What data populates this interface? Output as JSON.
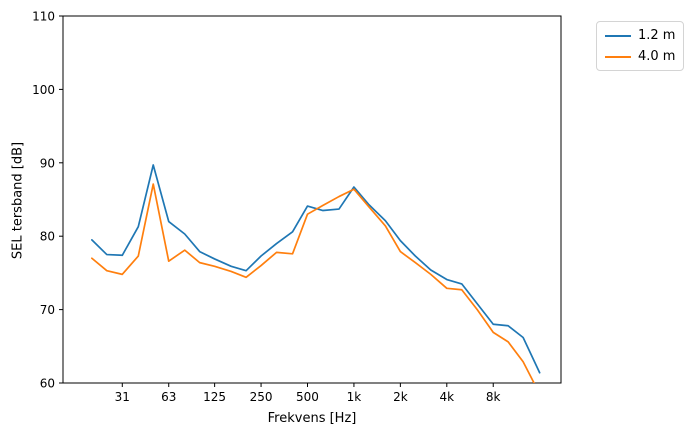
{
  "chart_data": {
    "type": "line",
    "title": "",
    "xlabel": "Frekvens [Hz]",
    "ylabel": "SEL tersband [dB]",
    "x_scale": "log",
    "grid": false,
    "xlim": [
      13,
      22000
    ],
    "ylim": [
      60,
      110
    ],
    "yticks": [
      60,
      70,
      80,
      90,
      100,
      110
    ],
    "xticks": [
      {
        "value": 31.5,
        "label": "31"
      },
      {
        "value": 63,
        "label": "63"
      },
      {
        "value": 125,
        "label": "125"
      },
      {
        "value": 250,
        "label": "250"
      },
      {
        "value": 500,
        "label": "500"
      },
      {
        "value": 1000,
        "label": "1k"
      },
      {
        "value": 2000,
        "label": "2k"
      },
      {
        "value": 4000,
        "label": "4k"
      },
      {
        "value": 8000,
        "label": "8k"
      }
    ],
    "x": [
      20,
      25,
      31.5,
      40,
      50,
      63,
      80,
      100,
      125,
      160,
      200,
      250,
      315,
      400,
      500,
      630,
      800,
      1000,
      1250,
      1600,
      2000,
      2500,
      3150,
      4000,
      5000,
      6300,
      8000,
      10000,
      12500,
      16000
    ],
    "series": [
      {
        "name": "1.2 m",
        "color": "#1f77b4",
        "values": [
          79.5,
          77.5,
          77.4,
          81.3,
          89.7,
          82.0,
          80.3,
          77.9,
          76.9,
          75.9,
          75.3,
          77.3,
          79.0,
          80.6,
          84.1,
          83.5,
          83.7,
          86.7,
          84.3,
          82.1,
          79.4,
          77.3,
          75.4,
          74.1,
          73.5,
          70.8,
          68.0,
          67.8,
          66.2,
          61.4
        ]
      },
      {
        "name": "4.0 m",
        "color": "#ff7f0e",
        "values": [
          77.0,
          75.3,
          74.8,
          77.3,
          87.1,
          76.6,
          78.1,
          76.4,
          75.9,
          75.2,
          74.4,
          76.0,
          77.8,
          77.6,
          83.0,
          84.2,
          85.4,
          86.4,
          84.0,
          81.4,
          77.9,
          76.4,
          74.8,
          72.9,
          72.7,
          70.0,
          66.9,
          65.6,
          62.9,
          58.5
        ]
      }
    ],
    "legend": {
      "position": "upper right outside",
      "entries": [
        "1.2 m",
        "4.0 m"
      ]
    },
    "axis_color": "#000000"
  }
}
